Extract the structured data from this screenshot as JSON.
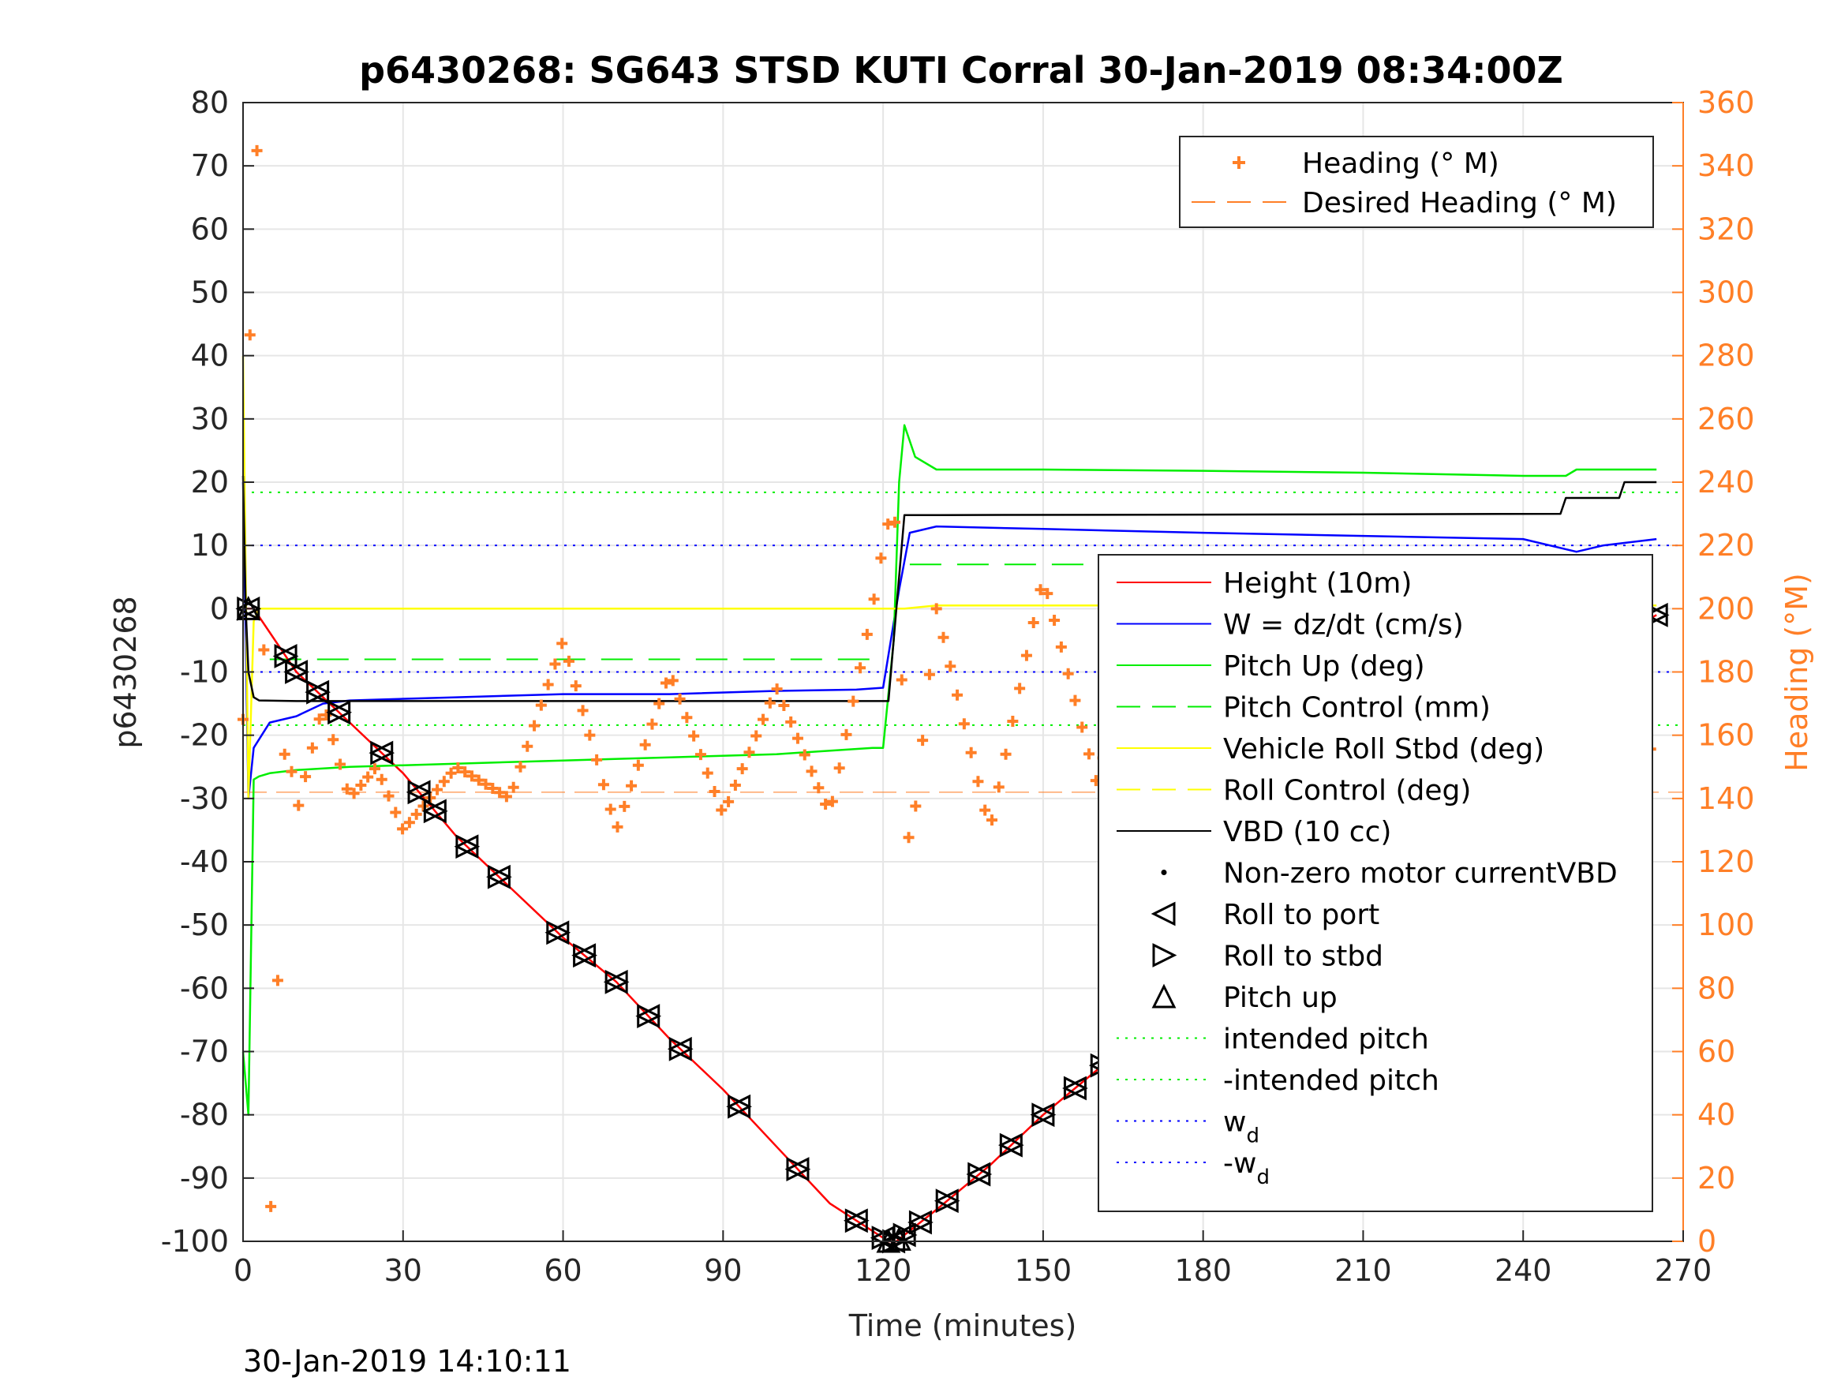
{
  "chart_data": {
    "type": "line",
    "title": "p6430268: SG643 STSD KUTI Corral 30-Jan-2019 08:34:00Z",
    "xlabel": "Time (minutes)",
    "ylabel": "p6430268",
    "ylabel_right": "Heading (°M)",
    "timestamp": "30-Jan-2019 14:10:11",
    "xlim": [
      0,
      270
    ],
    "ylim": [
      -100,
      80
    ],
    "ylim_right": [
      0,
      360
    ],
    "x_ticks": [
      "0",
      "30",
      "60",
      "90",
      "120",
      "150",
      "180",
      "210",
      "240",
      "270"
    ],
    "y_ticks": [
      "80",
      "70",
      "60",
      "50",
      "40",
      "30",
      "20",
      "10",
      "0",
      "-10",
      "-20",
      "-30",
      "-40",
      "-50",
      "-60",
      "-70",
      "-80",
      "-90",
      "-100"
    ],
    "y_right_ticks": [
      "360",
      "340",
      "320",
      "300",
      "280",
      "260",
      "240",
      "220",
      "200",
      "180",
      "160",
      "140",
      "120",
      "100",
      "80",
      "60",
      "40",
      "20",
      "0"
    ],
    "grid": true,
    "colors": {
      "height": "#ff0000",
      "w": "#0000ff",
      "pitch": "#00ee00",
      "roll": "#ffff00",
      "vbd": "#000000",
      "heading": "#ff7f27",
      "wd": "#0000ff"
    },
    "reference_lines": {
      "intended_pitch": 18.4,
      "neg_intended_pitch": -18.4,
      "w_d": 10,
      "neg_w_d": -10,
      "pitch_control_dive": -8,
      "pitch_control_climb": 7,
      "desired_heading_deg": 142
    },
    "series": [
      {
        "name": "Height (10m)",
        "x": [
          0,
          2,
          10,
          20,
          30,
          40,
          50,
          60,
          70,
          80,
          90,
          100,
          110,
          121,
          122.5,
          130,
          140,
          150,
          160,
          170,
          180,
          190,
          200,
          210,
          220,
          230,
          240,
          250,
          265
        ],
        "values": [
          0,
          0,
          -10,
          -18,
          -26,
          -36,
          -44,
          -52,
          -59,
          -68,
          -76,
          -85,
          -94,
          -100,
          -100,
          -95,
          -88,
          -80,
          -73,
          -65,
          -57,
          -49,
          -41,
          -33,
          -26,
          -18,
          -12,
          -8,
          -1
        ]
      },
      {
        "name": "W = dz/dt (cm/s)",
        "x": [
          0,
          1,
          2,
          5,
          10,
          15,
          20,
          40,
          60,
          80,
          100,
          115,
          120,
          123,
          125,
          130,
          150,
          180,
          210,
          240,
          250,
          255,
          265
        ],
        "values": [
          20,
          -30,
          -22,
          -18,
          -17,
          -15,
          -14.5,
          -14,
          -13.5,
          -13.5,
          -13,
          -12.8,
          -12.5,
          3,
          12,
          13,
          12.6,
          12,
          11.5,
          11,
          9,
          10,
          11
        ]
      },
      {
        "name": "Pitch Up (deg)",
        "x": [
          0,
          1,
          2,
          3,
          5,
          10,
          20,
          40,
          60,
          80,
          100,
          118,
          120,
          122,
          123,
          124,
          126,
          130,
          150,
          180,
          210,
          240,
          248,
          250,
          265
        ],
        "values": [
          -70,
          -80,
          -27,
          -26.5,
          -26,
          -25.5,
          -25,
          -24.5,
          -24,
          -23.5,
          -23,
          -22,
          -22,
          -5,
          20,
          29,
          24,
          22,
          22,
          21.8,
          21.5,
          21,
          21,
          22,
          22
        ]
      },
      {
        "name": "Vehicle Roll Stbd (deg)",
        "x": [
          0,
          1,
          2,
          3,
          5,
          10,
          20,
          60,
          100,
          120,
          124,
          130,
          160,
          200,
          240,
          265
        ],
        "values": [
          40,
          -30,
          -2,
          0,
          0,
          0,
          0,
          0,
          0,
          0,
          0,
          0.5,
          0.5,
          0.5,
          0.5,
          0.5
        ]
      },
      {
        "name": "VBD (10 cc)",
        "x": [
          0,
          0.5,
          1,
          2,
          3,
          10,
          60,
          120,
          121,
          124,
          125,
          130,
          200,
          247,
          248,
          258,
          259,
          265
        ],
        "values": [
          21,
          0,
          -10,
          -14,
          -14.5,
          -14.6,
          -14.6,
          -14.6,
          -14.6,
          14.8,
          14.8,
          14.8,
          14.9,
          15,
          17.5,
          17.5,
          20,
          20
        ]
      }
    ],
    "heading_series": {
      "name": "Heading (° M)",
      "x": [
        0,
        2,
        3,
        5,
        8,
        10,
        15,
        20,
        25,
        30,
        40,
        50,
        60,
        70,
        80,
        90,
        100,
        110,
        118,
        120,
        122,
        125,
        130,
        140,
        150,
        160,
        170,
        180,
        190,
        200,
        210,
        220,
        230,
        240,
        245,
        250,
        255,
        260,
        265
      ],
      "values": [
        165,
        352,
        340,
        0,
        165,
        135,
        170,
        140,
        150,
        130,
        150,
        140,
        190,
        130,
        180,
        135,
        175,
        135,
        200,
        220,
        235,
        120,
        200,
        130,
        210,
        145,
        210,
        140,
        190,
        120,
        190,
        150,
        210,
        140,
        130,
        60,
        200,
        140,
        160
      ]
    },
    "legend_top": [
      {
        "label": "Heading (° M)",
        "marker": "plus",
        "color": "#ff7f27"
      },
      {
        "label": "Desired Heading (° M)",
        "marker": "dash",
        "color": "#ff7f27"
      }
    ],
    "legend_main": [
      {
        "label": "Height (10m)",
        "marker": "line",
        "color": "#ff0000"
      },
      {
        "label": "W = dz/dt (cm/s)",
        "marker": "line",
        "color": "#0000ff"
      },
      {
        "label": "Pitch Up (deg)",
        "marker": "line",
        "color": "#00ee00"
      },
      {
        "label": "Pitch Control (mm)",
        "marker": "dash",
        "color": "#00ee00"
      },
      {
        "label": "Vehicle Roll Stbd (deg)",
        "marker": "line",
        "color": "#ffff00"
      },
      {
        "label": "Roll Control (deg)",
        "marker": "dash",
        "color": "#ffff00"
      },
      {
        "label": "VBD (10 cc)",
        "marker": "line",
        "color": "#000000"
      },
      {
        "label": "Non-zero motor currentVBD",
        "marker": "dot",
        "color": "#000000"
      },
      {
        "label": "Roll to port",
        "marker": "tri-left",
        "color": "#000000"
      },
      {
        "label": "Roll to stbd",
        "marker": "tri-right",
        "color": "#000000"
      },
      {
        "label": "Pitch up",
        "marker": "tri-up",
        "color": "#000000"
      },
      {
        "label": "intended pitch",
        "marker": "dotted",
        "color": "#00ee00"
      },
      {
        "label": "-intended pitch",
        "marker": "dotted",
        "color": "#00ee00"
      },
      {
        "label": "w",
        "sub": "d",
        "marker": "dotted",
        "color": "#0000ff"
      },
      {
        "label": "-w",
        "sub": "d",
        "marker": "dotted",
        "color": "#0000ff"
      }
    ],
    "markers_x": [
      1,
      8,
      10,
      14,
      18,
      26,
      33,
      36,
      42,
      48,
      59,
      64,
      70,
      76,
      82,
      93,
      104,
      115,
      120,
      122,
      124,
      127,
      132,
      138,
      144,
      150,
      156,
      161,
      168,
      173,
      179,
      185,
      191,
      196,
      202,
      213,
      224,
      228,
      232,
      236,
      240,
      244,
      249,
      253,
      256,
      259,
      262,
      265
    ]
  }
}
